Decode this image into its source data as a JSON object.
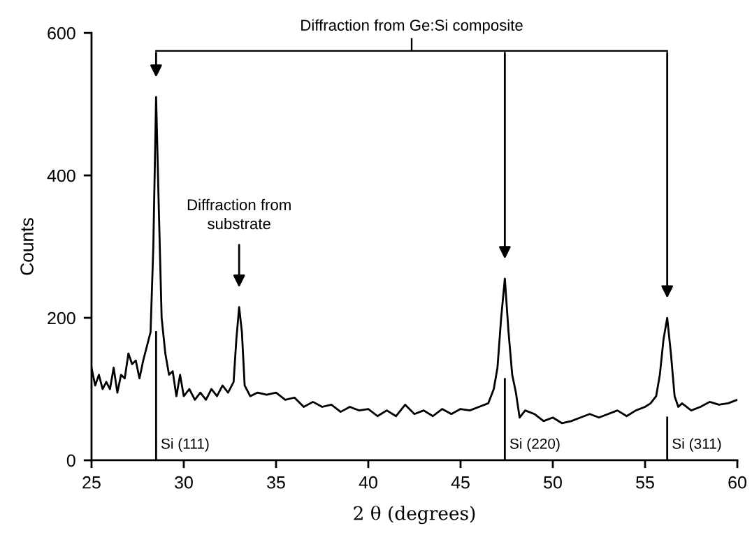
{
  "chart_data": {
    "type": "line",
    "xlabel": "2 θ (degrees)",
    "ylabel": "Counts",
    "x": [
      25.0,
      25.2,
      25.4,
      25.6,
      25.8,
      26.0,
      26.2,
      26.4,
      26.6,
      26.8,
      27.0,
      27.2,
      27.4,
      27.6,
      27.8,
      28.0,
      28.2,
      28.35,
      28.5,
      28.65,
      28.8,
      29.0,
      29.2,
      29.4,
      29.6,
      29.8,
      30.0,
      30.3,
      30.6,
      30.9,
      31.2,
      31.5,
      31.8,
      32.1,
      32.4,
      32.7,
      32.85,
      33.0,
      33.15,
      33.3,
      33.6,
      34.0,
      34.5,
      35.0,
      35.5,
      36.0,
      36.5,
      37.0,
      37.5,
      38.0,
      38.5,
      39.0,
      39.5,
      40.0,
      40.5,
      41.0,
      41.5,
      42.0,
      42.5,
      43.0,
      43.5,
      44.0,
      44.5,
      45.0,
      45.5,
      46.0,
      46.5,
      46.8,
      47.0,
      47.2,
      47.4,
      47.6,
      47.8,
      48.0,
      48.2,
      48.5,
      49.0,
      49.5,
      50.0,
      50.5,
      51.0,
      51.5,
      52.0,
      52.5,
      53.0,
      53.5,
      54.0,
      54.5,
      55.0,
      55.3,
      55.6,
      55.8,
      56.0,
      56.2,
      56.4,
      56.6,
      56.8,
      57.0,
      57.5,
      58.0,
      58.5,
      59.0,
      59.5,
      60.0
    ],
    "series": [
      {
        "color": "#000000",
        "values": [
          130,
          105,
          120,
          100,
          110,
          100,
          130,
          95,
          120,
          115,
          150,
          135,
          140,
          115,
          140,
          160,
          180,
          300,
          510,
          350,
          200,
          150,
          120,
          125,
          90,
          120,
          90,
          100,
          85,
          95,
          85,
          100,
          90,
          105,
          95,
          110,
          170,
          215,
          180,
          105,
          90,
          95,
          92,
          95,
          85,
          88,
          75,
          82,
          75,
          78,
          68,
          75,
          70,
          72,
          62,
          70,
          62,
          78,
          65,
          70,
          62,
          72,
          65,
          72,
          70,
          75,
          80,
          100,
          130,
          200,
          255,
          180,
          120,
          95,
          60,
          70,
          65,
          55,
          60,
          52,
          55,
          60,
          65,
          60,
          65,
          70,
          62,
          70,
          75,
          80,
          90,
          120,
          170,
          200,
          150,
          90,
          75,
          80,
          70,
          75,
          82,
          78,
          80,
          85
        ]
      }
    ],
    "xlim": [
      25,
      60
    ],
    "xticks": [
      25,
      30,
      35,
      40,
      45,
      50,
      55,
      60
    ],
    "ylim": [
      0,
      600
    ],
    "yticks": [
      0,
      200,
      400,
      600
    ],
    "grid": false,
    "marker": "none",
    "line_style": "solid",
    "ref_lines": [
      {
        "axis": "x",
        "value": 28.5,
        "label": "Si (111)"
      },
      {
        "axis": "x",
        "value": 47.4,
        "label": "Si (220)"
      },
      {
        "axis": "x",
        "value": 56.2,
        "label": "Si (311)"
      }
    ],
    "annotations": [
      "Diffraction from Ge:Si composite",
      "Diffraction from\nsubstrate"
    ]
  }
}
